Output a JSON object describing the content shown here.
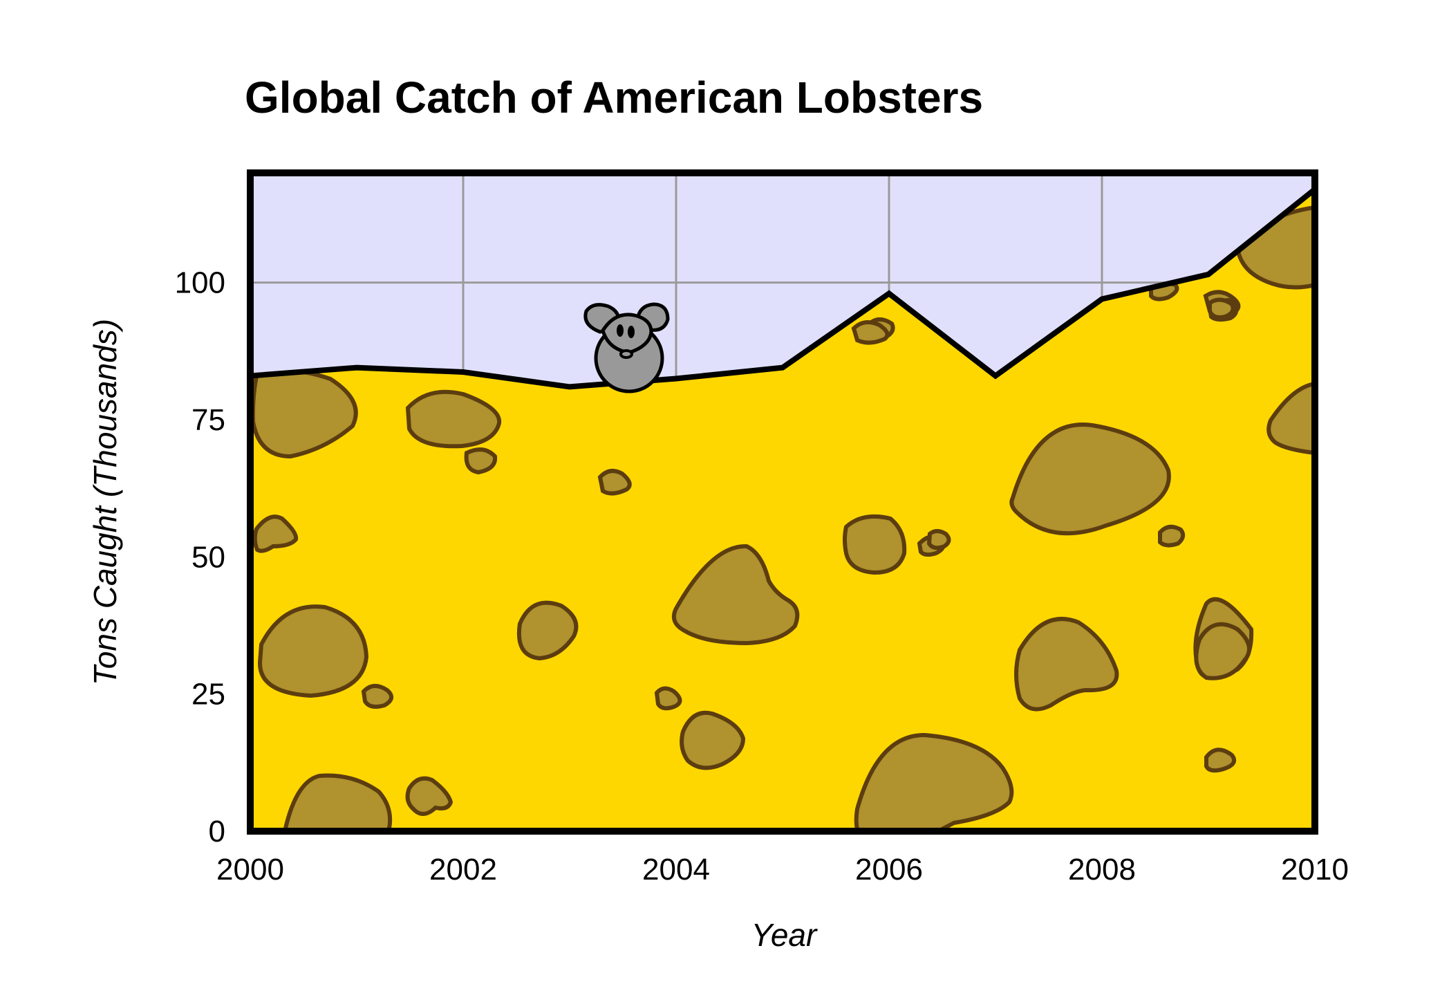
{
  "chart_data": {
    "type": "area",
    "title": "Global Catch of American Lobsters",
    "xlabel": "Year",
    "ylabel": "Tons Caught (Thousands)",
    "x": [
      2000,
      2001,
      2002,
      2003,
      2004,
      2005,
      2006,
      2007,
      2008,
      2009,
      2010
    ],
    "series": [
      {
        "values": [
          83,
          84.5,
          83.7,
          81,
          82.5,
          84.5,
          98,
          83,
          97,
          101.5,
          117
        ]
      }
    ],
    "xlim": [
      2000,
      2010
    ],
    "ylim": [
      0,
      120
    ],
    "xticks": [
      "2000",
      "2002",
      "2004",
      "2006",
      "2008",
      "2010"
    ],
    "yticks": [
      "0",
      "25",
      "50",
      "75",
      "100"
    ],
    "grid": true,
    "colors": {
      "fill": "#ffd700",
      "background": "#e0e0fc",
      "line": "#000000",
      "hole_fill": "#b0922e",
      "hole_stroke": "#5c3d10",
      "mouse": "#999999"
    },
    "decoration": "cheese-with-mouse"
  }
}
